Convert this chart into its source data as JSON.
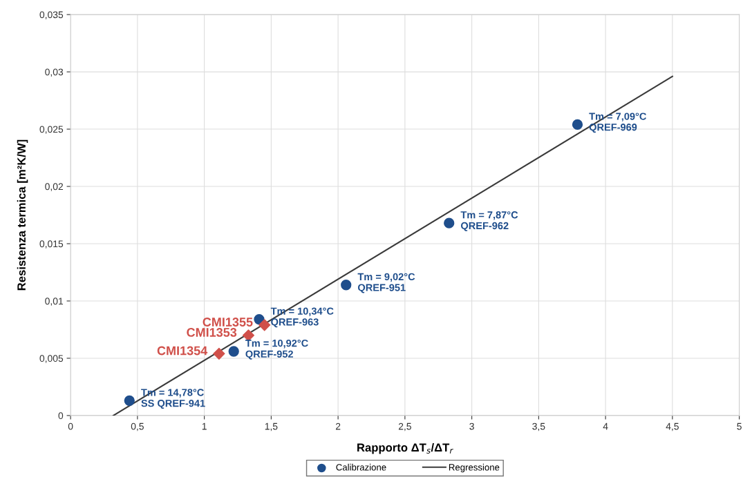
{
  "chart_data": {
    "type": "scatter",
    "xlabel": "Rapporto ΔT$_{s}$/ΔT$_{r}$",
    "ylabel": "Resistenza termica [m²K/W]",
    "series": [
      {
        "name": "Calibrazione",
        "marker": "circle",
        "color": "#1f4e8c",
        "x": [
          0.44,
          1.41,
          1.22,
          2.06,
          2.83,
          3.79
        ],
        "values": [
          0.0013,
          0.0084,
          0.0056,
          0.0114,
          0.0168,
          0.0254
        ]
      },
      {
        "name": "Regressione",
        "type": "line",
        "marker": "none",
        "line_style": "solid",
        "color": "#3a3a3a",
        "x": [
          0.32,
          4.5
        ],
        "values": [
          0.0,
          0.0296
        ]
      },
      {
        "marker": "diamond",
        "color": "#d0504a",
        "x": [
          1.11,
          1.33,
          1.45
        ],
        "values": [
          0.0054,
          0.007,
          0.0079
        ]
      }
    ],
    "annotations": [
      {
        "text": "Tm = 14,78°C\nSS QREF-941",
        "x": 0.44,
        "y": 0.0013
      },
      {
        "text": "Tm = 10,34°C\nQREF-963",
        "x": 1.41,
        "y": 0.0084
      },
      {
        "text": "Tm = 10,92°C\nQREF-952",
        "x": 1.22,
        "y": 0.0056
      },
      {
        "text": "Tm = 9,02°C\nQREF-951",
        "x": 2.06,
        "y": 0.0114
      },
      {
        "text": "Tm = 7,87°C\nQREF-962",
        "x": 2.83,
        "y": 0.0168
      },
      {
        "text": "Tm = 7,09°C\nQREF-969",
        "x": 3.79,
        "y": 0.0254
      },
      {
        "text": "CMI1354",
        "x": 1.11,
        "y": 0.0054
      },
      {
        "text": "CMI1353",
        "x": 1.33,
        "y": 0.007
      },
      {
        "text": "CMI1355",
        "x": 1.45,
        "y": 0.0079
      }
    ],
    "xlim": [
      0,
      5
    ],
    "ylim": [
      0,
      0.035
    ],
    "xticks": [
      0,
      {
        "value": 0.5,
        "label": "0,5"
      },
      1,
      {
        "value": 1.5,
        "label": "1,5"
      },
      2,
      {
        "value": 2.5,
        "label": "2,5"
      },
      3,
      {
        "value": 3.5,
        "label": "3,5"
      },
      4,
      {
        "value": 4.5,
        "label": "4,5"
      },
      5
    ],
    "yticks": [
      0,
      {
        "value": 0.005,
        "label": "0,005"
      },
      {
        "value": 0.01,
        "label": "0,01"
      },
      {
        "value": 0.015,
        "label": "0,015"
      },
      {
        "value": 0.02,
        "label": "0,02"
      },
      {
        "value": 0.025,
        "label": "0,025"
      },
      {
        "value": 0.03,
        "label": "0,03"
      },
      {
        "value": 0.035,
        "label": "0,035"
      }
    ],
    "grid": true,
    "legend": "bottom"
  }
}
